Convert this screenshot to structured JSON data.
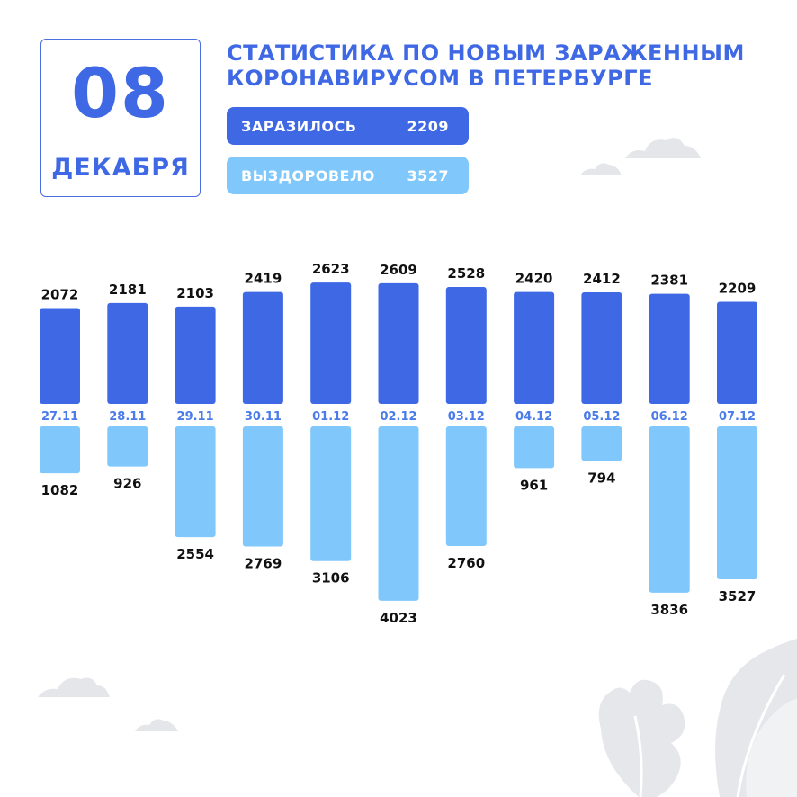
{
  "header": {
    "day": "08",
    "month": "ДЕКАБРЯ",
    "title_line1": "СТАТИСТИКА ПО НОВЫМ ЗАРАЖЕННЫМ",
    "title_line2": "КОРОНАВИРУСОМ В ПЕТЕРБУРГЕ"
  },
  "summary": {
    "infected_label": "ЗАРАЗИЛОСЬ",
    "infected_value": "2209",
    "recovered_label": "ВЫЗДОРОВЕЛО",
    "recovered_value": "3527"
  },
  "colors": {
    "infected": "#3f68e4",
    "recovered": "#80c8fb",
    "date_label": "#4a7be8",
    "value_text": "#111111",
    "decoration": "#e4e6ea"
  },
  "chart_data": {
    "type": "bar",
    "categories": [
      "27.11",
      "28.11",
      "29.11",
      "30.11",
      "01.12",
      "02.12",
      "03.12",
      "04.12",
      "05.12",
      "06.12",
      "07.12"
    ],
    "series": [
      {
        "values": [
          2072,
          2181,
          2103,
          2419,
          2623,
          2609,
          2528,
          2420,
          2412,
          2381,
          2209
        ]
      },
      {
        "values": [
          1082,
          926,
          2554,
          2769,
          3106,
          4023,
          2760,
          961,
          794,
          3836,
          3527
        ]
      }
    ],
    "title": "",
    "xlabel": "",
    "ylabel": "",
    "grid": false,
    "layout": "mirrored bars: first series above the date labels, second series below"
  }
}
